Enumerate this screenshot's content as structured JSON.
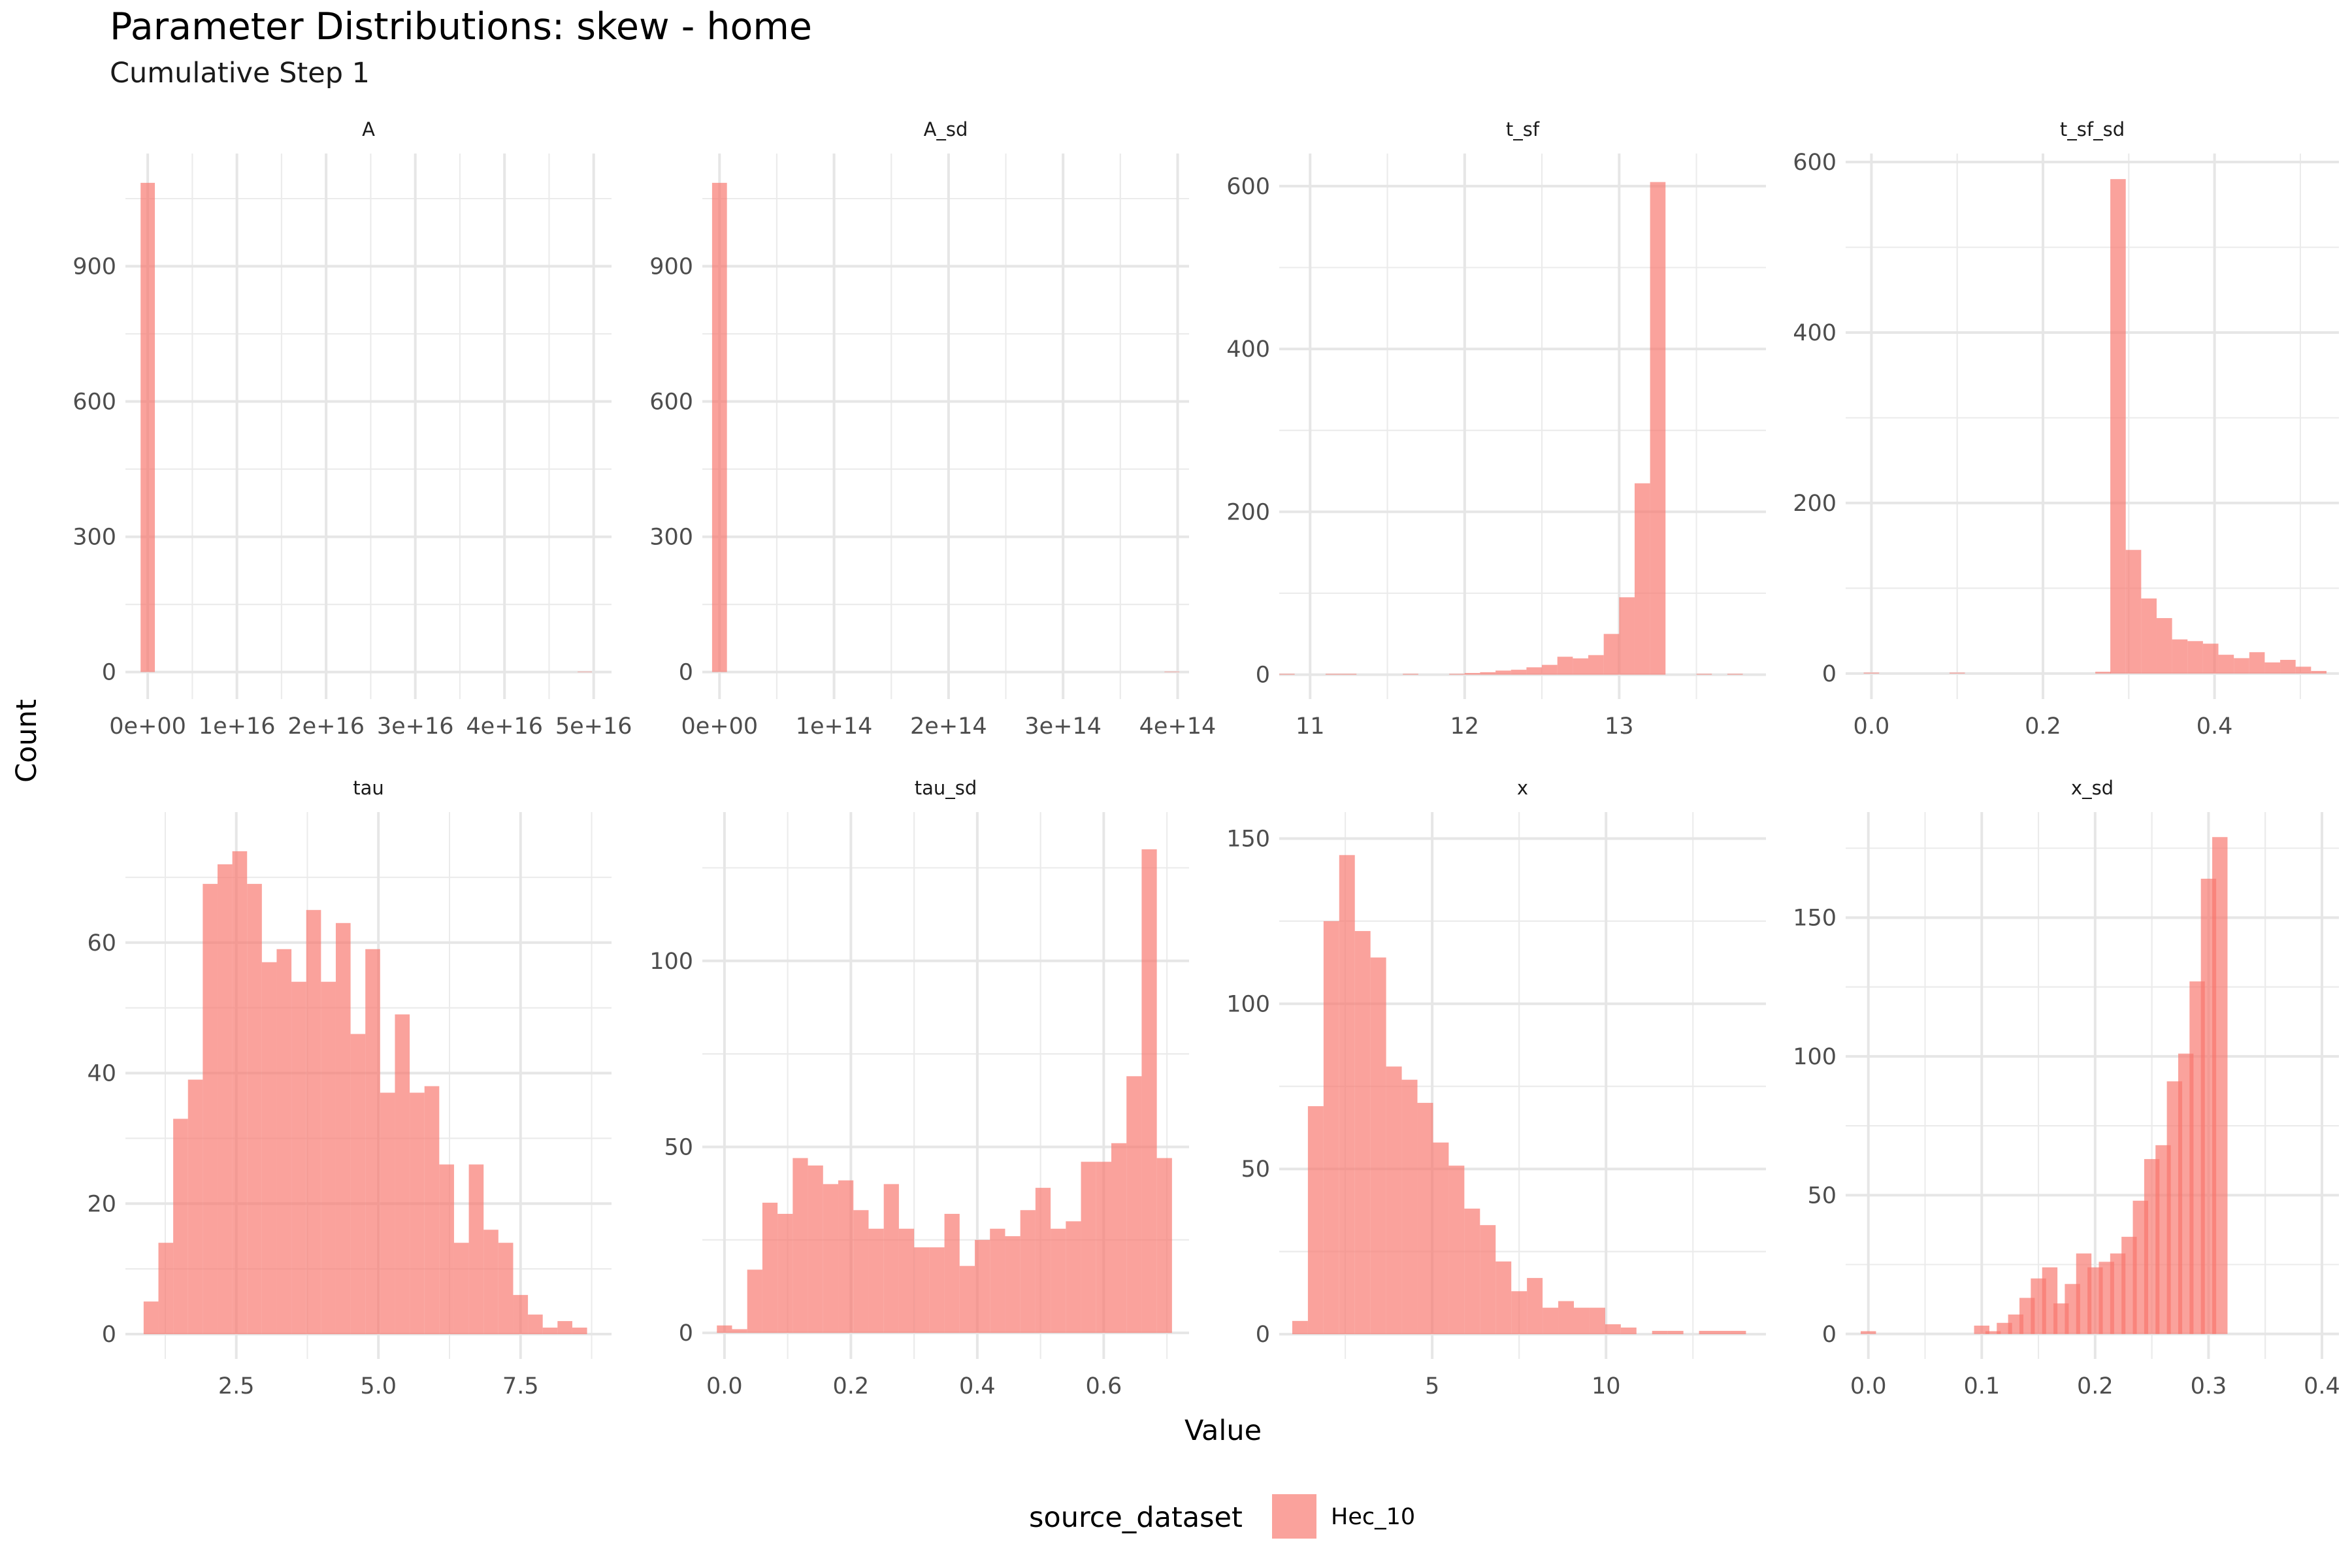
{
  "title": "Parameter Distributions: skew - home",
  "subtitle": "Cumulative Step 1",
  "chart_data": {
    "type": "histogram-facets",
    "xlabel": "Value",
    "ylabel": "Count",
    "fill_color": "#F8766D",
    "legend": {
      "title": "source_dataset",
      "entries": [
        "Hec_10"
      ],
      "placement": "bottom"
    },
    "panels": [
      {
        "name": "A",
        "xlim": [
          -2500000000000000.0,
          5.2e+16
        ],
        "ylim": [
          -60,
          1150
        ],
        "x_ticks": [
          0,
          1e+16,
          2e+16,
          3e+16,
          4e+16,
          5e+16
        ],
        "x_tick_labels": [
          "0e+00",
          "1e+16",
          "2e+16",
          "3e+16",
          "4e+16",
          "5e+16"
        ],
        "y_ticks": [
          0,
          300,
          600,
          900
        ],
        "y_tick_labels": [
          "0",
          "300",
          "600",
          "900"
        ],
        "bins": [
          [
            0,
            1085
          ],
          [
            4.9e+16,
            1
          ]
        ],
        "bin_width": 1600000000000000.0
      },
      {
        "name": "A_sd",
        "xlim": [
          -15000000000000.0,
          410000000000000.0
        ],
        "ylim": [
          -60,
          1150
        ],
        "x_ticks": [
          0,
          100000000000000.0,
          200000000000000.0,
          300000000000000.0,
          400000000000000.0
        ],
        "x_tick_labels": [
          "0e+00",
          "1e+14",
          "2e+14",
          "3e+14",
          "4e+14"
        ],
        "y_ticks": [
          0,
          300,
          600,
          900
        ],
        "y_tick_labels": [
          "0",
          "300",
          "600",
          "900"
        ],
        "bins": [
          [
            0,
            1085
          ],
          [
            395000000000000.0,
            1
          ]
        ],
        "bin_width": 13000000000000.0
      },
      {
        "name": "t_sf",
        "xlim": [
          10.8,
          13.95
        ],
        "ylim": [
          -30,
          640
        ],
        "x_ticks": [
          11,
          12,
          13
        ],
        "x_tick_labels": [
          "11",
          "12",
          "13"
        ],
        "y_ticks": [
          0,
          200,
          400,
          600
        ],
        "y_tick_labels": [
          "0",
          "200",
          "400",
          "600"
        ],
        "bins": [
          [
            10.85,
            1
          ],
          [
            11.15,
            1
          ],
          [
            11.25,
            1
          ],
          [
            11.65,
            1
          ],
          [
            11.95,
            1
          ],
          [
            12.05,
            2
          ],
          [
            12.15,
            3
          ],
          [
            12.25,
            5
          ],
          [
            12.35,
            6
          ],
          [
            12.45,
            9
          ],
          [
            12.55,
            12
          ],
          [
            12.65,
            22
          ],
          [
            12.75,
            20
          ],
          [
            12.85,
            24
          ],
          [
            12.95,
            50
          ],
          [
            13.05,
            95
          ],
          [
            13.15,
            235
          ],
          [
            13.25,
            605
          ],
          [
            13.55,
            1
          ],
          [
            13.75,
            1
          ]
        ],
        "bin_width": 0.1
      },
      {
        "name": "t_sf_sd",
        "xlim": [
          -0.03,
          0.545
        ],
        "ylim": [
          -30,
          610
        ],
        "x_ticks": [
          0.0,
          0.2,
          0.4
        ],
        "x_tick_labels": [
          "0.0",
          "0.2",
          "0.4"
        ],
        "y_ticks": [
          0,
          200,
          400,
          600
        ],
        "y_tick_labels": [
          "0",
          "200",
          "400",
          "600"
        ],
        "bins": [
          [
            0.0,
            1
          ],
          [
            0.1,
            1
          ],
          [
            0.27,
            2
          ],
          [
            0.2875,
            580
          ],
          [
            0.3055,
            145
          ],
          [
            0.3235,
            88
          ],
          [
            0.3415,
            65
          ],
          [
            0.3595,
            40
          ],
          [
            0.3775,
            38
          ],
          [
            0.3955,
            35
          ],
          [
            0.4135,
            22
          ],
          [
            0.4315,
            18
          ],
          [
            0.4495,
            25
          ],
          [
            0.4675,
            13
          ],
          [
            0.4855,
            16
          ],
          [
            0.5035,
            8
          ],
          [
            0.5215,
            3
          ]
        ],
        "bin_width": 0.018
      },
      {
        "name": "tau",
        "xlim": [
          0.55,
          9.1
        ],
        "ylim": [
          -3.8,
          80
        ],
        "x_ticks": [
          2.5,
          5.0,
          7.5
        ],
        "x_tick_labels": [
          "2.5",
          "5.0",
          "7.5"
        ],
        "y_ticks": [
          0,
          20,
          40,
          60
        ],
        "y_tick_labels": [
          "0",
          "20",
          "40",
          "60"
        ],
        "bins": [
          [
            1.0,
            5
          ],
          [
            1.26,
            14
          ],
          [
            1.52,
            33
          ],
          [
            1.78,
            39
          ],
          [
            2.04,
            69
          ],
          [
            2.3,
            72
          ],
          [
            2.56,
            74
          ],
          [
            2.82,
            69
          ],
          [
            3.08,
            57
          ],
          [
            3.34,
            59
          ],
          [
            3.6,
            54
          ],
          [
            3.86,
            65
          ],
          [
            4.12,
            54
          ],
          [
            4.38,
            63
          ],
          [
            4.64,
            46
          ],
          [
            4.9,
            59
          ],
          [
            5.16,
            37
          ],
          [
            5.42,
            49
          ],
          [
            5.68,
            37
          ],
          [
            5.94,
            38
          ],
          [
            6.2,
            26
          ],
          [
            6.46,
            14
          ],
          [
            6.72,
            26
          ],
          [
            6.98,
            16
          ],
          [
            7.24,
            14
          ],
          [
            7.5,
            6
          ],
          [
            7.76,
            3
          ],
          [
            8.02,
            1
          ],
          [
            8.28,
            2
          ],
          [
            8.54,
            1
          ]
        ],
        "bin_width": 0.26
      },
      {
        "name": "tau_sd",
        "xlim": [
          -0.035,
          0.735
        ],
        "ylim": [
          -7,
          140
        ],
        "x_ticks": [
          0.0,
          0.2,
          0.4,
          0.6
        ],
        "x_tick_labels": [
          "0.0",
          "0.2",
          "0.4",
          "0.6"
        ],
        "y_ticks": [
          0,
          50,
          100
        ],
        "y_tick_labels": [
          "0",
          "50",
          "100"
        ],
        "bins": [
          [
            0.0,
            2
          ],
          [
            0.024,
            1
          ],
          [
            0.048,
            17
          ],
          [
            0.072,
            35
          ],
          [
            0.096,
            32
          ],
          [
            0.12,
            47
          ],
          [
            0.144,
            45
          ],
          [
            0.168,
            40
          ],
          [
            0.192,
            41
          ],
          [
            0.216,
            33
          ],
          [
            0.24,
            28
          ],
          [
            0.264,
            40
          ],
          [
            0.288,
            28
          ],
          [
            0.312,
            23
          ],
          [
            0.336,
            23
          ],
          [
            0.36,
            32
          ],
          [
            0.384,
            18
          ],
          [
            0.408,
            25
          ],
          [
            0.432,
            28
          ],
          [
            0.456,
            26
          ],
          [
            0.48,
            33
          ],
          [
            0.504,
            39
          ],
          [
            0.528,
            28
          ],
          [
            0.552,
            30
          ],
          [
            0.576,
            46
          ],
          [
            0.6,
            46
          ],
          [
            0.624,
            51
          ],
          [
            0.648,
            69
          ],
          [
            0.672,
            130
          ],
          [
            0.696,
            47
          ]
        ],
        "bin_width": 0.024
      },
      {
        "name": "x",
        "xlim": [
          0.6,
          14.6
        ],
        "ylim": [
          -7.5,
          158
        ],
        "x_ticks": [
          5,
          10
        ],
        "x_tick_labels": [
          "5",
          "10"
        ],
        "y_ticks": [
          0,
          50,
          100,
          150
        ],
        "y_tick_labels": [
          "0",
          "50",
          "100",
          "150"
        ],
        "bins": [
          [
            1.2,
            4
          ],
          [
            1.65,
            69
          ],
          [
            2.1,
            125
          ],
          [
            2.55,
            145
          ],
          [
            3.0,
            122
          ],
          [
            3.45,
            114
          ],
          [
            3.9,
            81
          ],
          [
            4.35,
            77
          ],
          [
            4.8,
            70
          ],
          [
            5.25,
            58
          ],
          [
            5.7,
            51
          ],
          [
            6.15,
            38
          ],
          [
            6.6,
            33
          ],
          [
            7.05,
            22
          ],
          [
            7.5,
            13
          ],
          [
            7.95,
            17
          ],
          [
            8.4,
            8
          ],
          [
            8.85,
            10
          ],
          [
            9.3,
            8
          ],
          [
            9.75,
            8
          ],
          [
            10.2,
            3
          ],
          [
            10.65,
            2
          ],
          [
            11.55,
            1
          ],
          [
            12.0,
            1
          ],
          [
            12.9,
            1
          ],
          [
            13.35,
            1
          ],
          [
            13.8,
            1
          ]
        ],
        "bin_width": 0.45
      },
      {
        "name": "x_sd",
        "xlim": [
          -0.02,
          0.415
        ],
        "ylim": [
          -9,
          188
        ],
        "x_ticks": [
          0.0,
          0.1,
          0.2,
          0.3,
          0.4
        ],
        "x_tick_labels": [
          "0.0",
          "0.1",
          "0.2",
          "0.3",
          "0.4"
        ],
        "y_ticks": [
          0,
          50,
          100,
          150
        ],
        "y_tick_labels": [
          "0",
          "50",
          "100",
          "150"
        ],
        "bins": [
          [
            0.0,
            1
          ],
          [
            0.1,
            3
          ],
          [
            0.11,
            1
          ],
          [
            0.12,
            4
          ],
          [
            0.13,
            7
          ],
          [
            0.14,
            13
          ],
          [
            0.15,
            20
          ],
          [
            0.16,
            24
          ],
          [
            0.17,
            11
          ],
          [
            0.18,
            18
          ],
          [
            0.19,
            29
          ],
          [
            0.2,
            24
          ],
          [
            0.21,
            26
          ],
          [
            0.22,
            29
          ],
          [
            0.23,
            35
          ],
          [
            0.24,
            48
          ],
          [
            0.25,
            63
          ],
          [
            0.26,
            68
          ],
          [
            0.27,
            91
          ],
          [
            0.28,
            101
          ],
          [
            0.29,
            127
          ],
          [
            0.3,
            164
          ],
          [
            0.31,
            179
          ]
        ],
        "bin_width": 0.0135
      }
    ]
  }
}
